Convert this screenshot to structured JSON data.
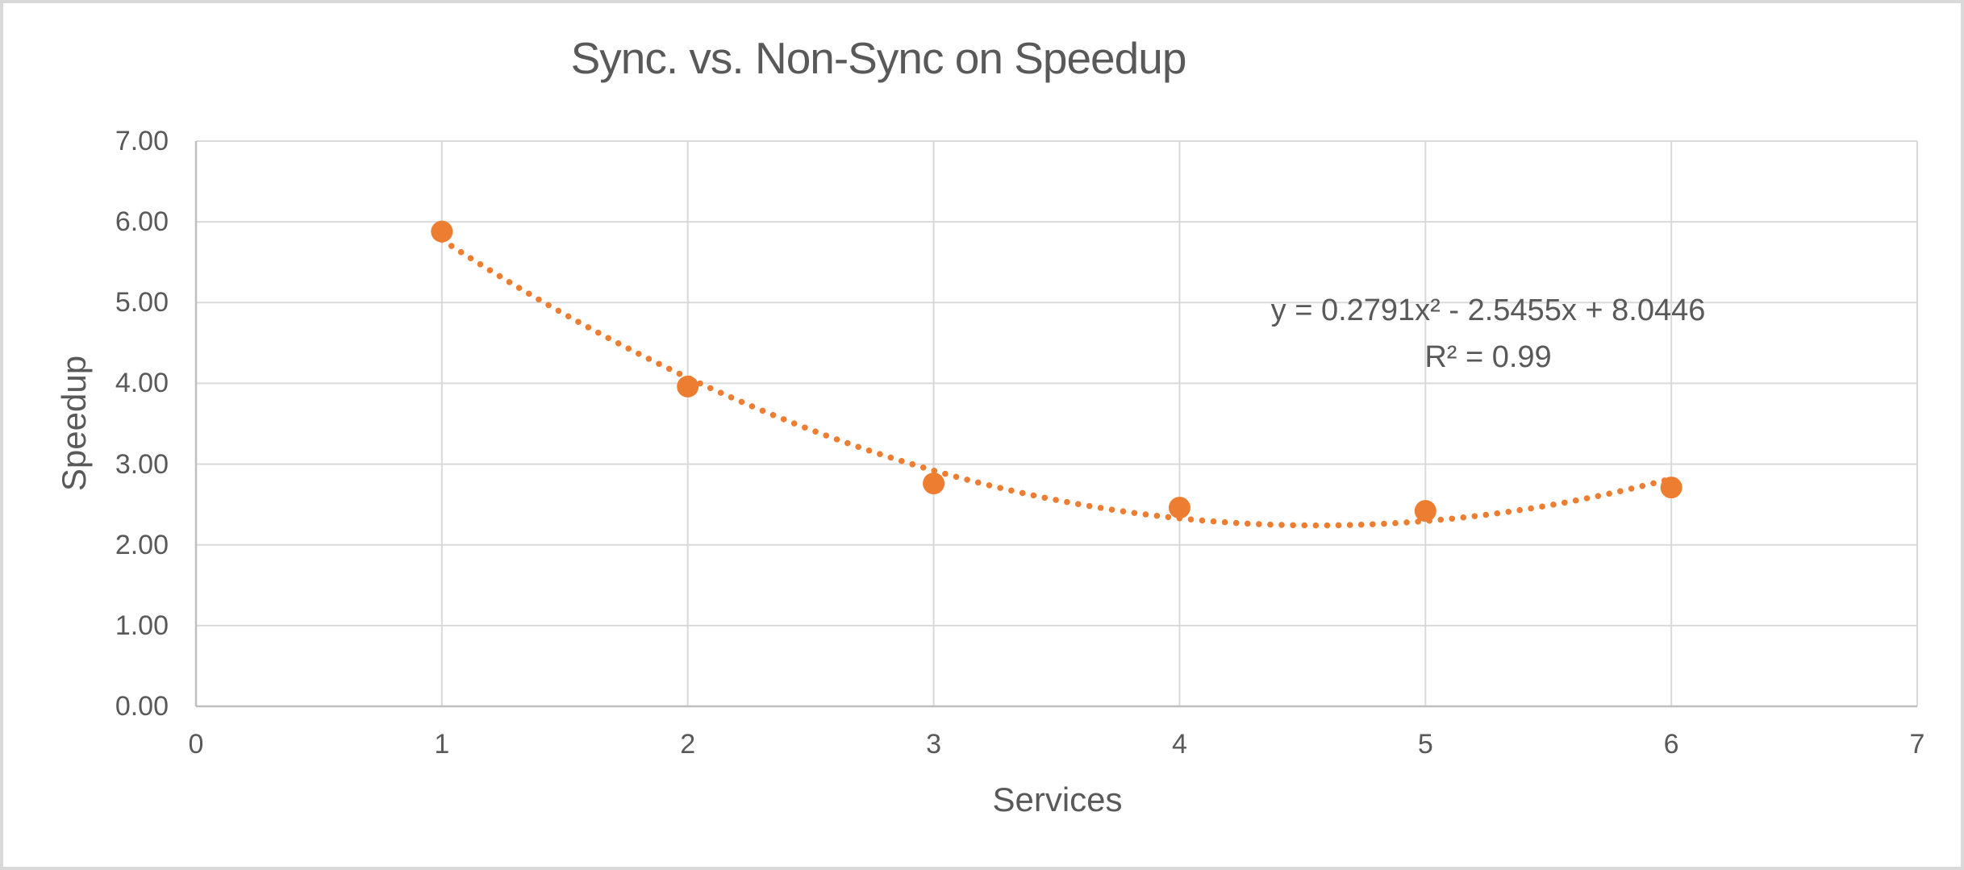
{
  "chart_data": {
    "type": "scatter",
    "title": "Sync. vs. Non-Sync on Speedup",
    "xlabel": "Services",
    "ylabel": "Speedup",
    "x": [
      1,
      2,
      3,
      4,
      5,
      6
    ],
    "y": [
      5.88,
      3.96,
      2.76,
      2.46,
      2.42,
      2.71
    ],
    "xlim": [
      0,
      7
    ],
    "ylim": [
      0,
      7
    ],
    "x_ticks": [
      "0",
      "1",
      "2",
      "3",
      "4",
      "5",
      "6",
      "7"
    ],
    "y_ticks": [
      "0.00",
      "1.00",
      "2.00",
      "3.00",
      "4.00",
      "5.00",
      "6.00",
      "7.00"
    ],
    "grid": true,
    "legend": "none",
    "trendline": {
      "type": "polynomial",
      "order": 2,
      "a": 0.2791,
      "b": -2.5455,
      "c": 8.0446,
      "equation": "y = 0.2791x² - 2.5455x + 8.0446",
      "r_squared_label": "R² = 0.99",
      "style": "dotted",
      "x_start": 1,
      "x_end": 6
    },
    "colors": {
      "marker": "#ED7D31",
      "trendline": "#ED7D31",
      "grid": "#D9D9D9",
      "axis": "#BFBFBF",
      "text": "#595959",
      "background": "#FFFFFF",
      "border": "#D9D9D9"
    }
  }
}
